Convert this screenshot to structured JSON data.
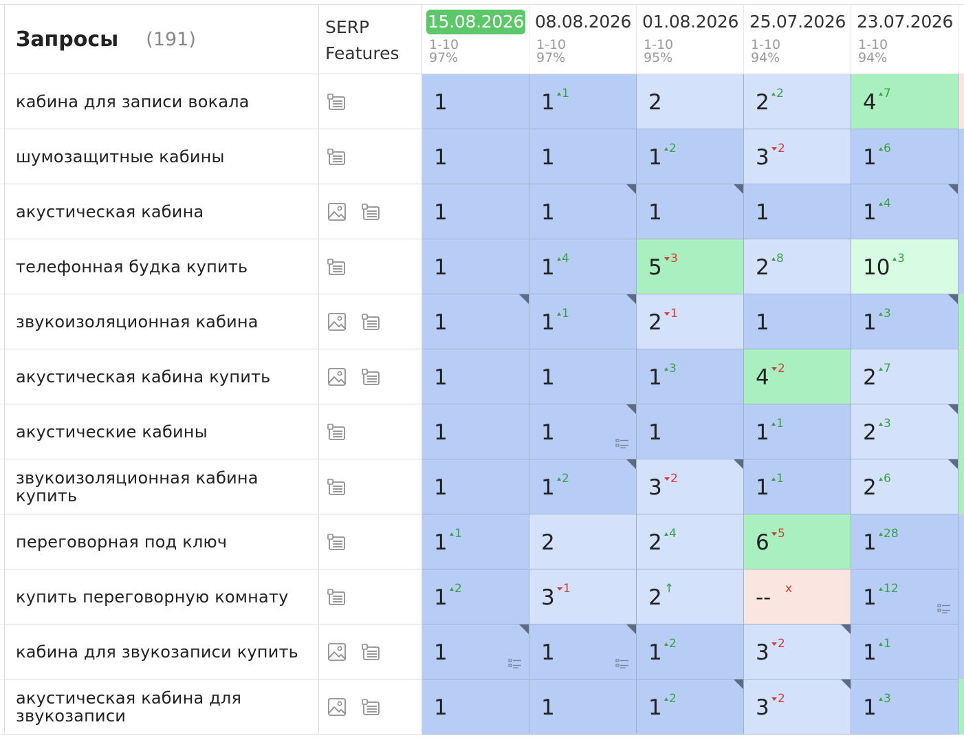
{
  "header": {
    "title": "Запросы",
    "count": "(191)",
    "serp_title_line1": "SERP",
    "serp_title_line2": "Features"
  },
  "dates": [
    {
      "date": "15.08.2026",
      "range": "1-10",
      "pct": "97%",
      "active": true
    },
    {
      "date": "08.08.2026",
      "range": "1-10",
      "pct": "97%",
      "active": false
    },
    {
      "date": "01.08.2026",
      "range": "1-10",
      "pct": "95%",
      "active": false
    },
    {
      "date": "25.07.2026",
      "range": "1-10",
      "pct": "94%",
      "active": false
    },
    {
      "date": "23.07.2026",
      "range": "1-10",
      "pct": "94%",
      "active": false
    }
  ],
  "colors": {
    "top1": "#b7cdf6",
    "top3": "#d3e1fb",
    "top5": "#a9efbf",
    "top10": "#d8fbe3",
    "missing": "#fbe5e0",
    "edge_green": "#a9efbf",
    "edge_pink": "#fbe5e0",
    "edge_blue": "#b7cdf6"
  },
  "rows": [
    {
      "query": "кабина для записи вокала",
      "serp": [
        "list"
      ],
      "edge": "edge_pink",
      "cells": [
        {
          "v": "1",
          "bg": "top1"
        },
        {
          "v": "1",
          "d": "1",
          "dir": "up",
          "bg": "top1"
        },
        {
          "v": "2",
          "bg": "top3"
        },
        {
          "v": "2",
          "d": "2",
          "dir": "up",
          "bg": "top3"
        },
        {
          "v": "4",
          "d": "7",
          "dir": "up",
          "bg": "top5"
        }
      ]
    },
    {
      "query": "шумозащитные кабины",
      "serp": [
        "list"
      ],
      "edge": "edge_blue",
      "cells": [
        {
          "v": "1",
          "bg": "top1"
        },
        {
          "v": "1",
          "bg": "top1"
        },
        {
          "v": "1",
          "d": "2",
          "dir": "up",
          "bg": "top1"
        },
        {
          "v": "3",
          "d": "2",
          "dir": "down",
          "bg": "top3"
        },
        {
          "v": "1",
          "d": "6",
          "dir": "up",
          "bg": "top1"
        }
      ]
    },
    {
      "query": "акустическая кабина",
      "serp": [
        "image",
        "list"
      ],
      "edge": "edge_blue",
      "cells": [
        {
          "v": "1",
          "bg": "top1"
        },
        {
          "v": "1",
          "bg": "top1",
          "corner": true
        },
        {
          "v": "1",
          "bg": "top1",
          "corner": true
        },
        {
          "v": "1",
          "bg": "top1"
        },
        {
          "v": "1",
          "d": "4",
          "dir": "up",
          "bg": "top1",
          "corner": true
        }
      ]
    },
    {
      "query": "телефонная будка купить",
      "serp": [
        "list"
      ],
      "edge": "edge_blue",
      "cells": [
        {
          "v": "1",
          "bg": "top1"
        },
        {
          "v": "1",
          "d": "4",
          "dir": "up",
          "bg": "top1"
        },
        {
          "v": "5",
          "d": "3",
          "dir": "down",
          "bg": "top5"
        },
        {
          "v": "2",
          "d": "8",
          "dir": "up",
          "bg": "top3"
        },
        {
          "v": "10",
          "d": "3",
          "dir": "up",
          "bg": "top10"
        }
      ]
    },
    {
      "query": "звукоизоляционная кабина",
      "serp": [
        "image",
        "list"
      ],
      "edge": "edge_green",
      "cells": [
        {
          "v": "1",
          "bg": "top1",
          "corner": true
        },
        {
          "v": "1",
          "d": "1",
          "dir": "up",
          "bg": "top1",
          "corner": true
        },
        {
          "v": "2",
          "d": "1",
          "dir": "down",
          "bg": "top3"
        },
        {
          "v": "1",
          "bg": "top1"
        },
        {
          "v": "1",
          "d": "3",
          "dir": "up",
          "bg": "top1",
          "corner": true
        }
      ]
    },
    {
      "query": "акустическая кабина купить",
      "serp": [
        "image",
        "list"
      ],
      "edge": "edge_green",
      "cells": [
        {
          "v": "1",
          "bg": "top1"
        },
        {
          "v": "1",
          "bg": "top1"
        },
        {
          "v": "1",
          "d": "3",
          "dir": "up",
          "bg": "top1"
        },
        {
          "v": "4",
          "d": "2",
          "dir": "down",
          "bg": "top5"
        },
        {
          "v": "2",
          "d": "7",
          "dir": "up",
          "bg": "top3"
        }
      ]
    },
    {
      "query": "акустические кабины",
      "serp": [
        "list"
      ],
      "edge": "edge_green",
      "cells": [
        {
          "v": "1",
          "bg": "top1"
        },
        {
          "v": "1",
          "bg": "top1",
          "corner": true,
          "listico": true
        },
        {
          "v": "1",
          "bg": "top1"
        },
        {
          "v": "1",
          "d": "1",
          "dir": "up",
          "bg": "top1"
        },
        {
          "v": "2",
          "d": "3",
          "dir": "up",
          "bg": "top3",
          "corner": true
        }
      ]
    },
    {
      "query": "звукоизоляционная кабина купить",
      "serp": [
        "list"
      ],
      "edge": "edge_green",
      "cells": [
        {
          "v": "1",
          "bg": "top1"
        },
        {
          "v": "1",
          "d": "2",
          "dir": "up",
          "bg": "top1",
          "corner": true
        },
        {
          "v": "3",
          "d": "2",
          "dir": "down",
          "bg": "top3",
          "corner": true
        },
        {
          "v": "1",
          "d": "1",
          "dir": "up",
          "bg": "top1"
        },
        {
          "v": "2",
          "d": "6",
          "dir": "up",
          "bg": "top3",
          "corner": true
        }
      ]
    },
    {
      "query": "переговорная под ключ",
      "serp": [
        "list"
      ],
      "edge": "edge_blue",
      "cells": [
        {
          "v": "1",
          "d": "1",
          "dir": "up",
          "bg": "top1"
        },
        {
          "v": "2",
          "bg": "top3"
        },
        {
          "v": "2",
          "d": "4",
          "dir": "up",
          "bg": "top3"
        },
        {
          "v": "6",
          "d": "5",
          "dir": "down",
          "bg": "top5"
        },
        {
          "v": "1",
          "d": "28",
          "dir": "up",
          "bg": "top1"
        }
      ]
    },
    {
      "query": "купить переговорную комнату",
      "serp": [
        "list"
      ],
      "edge": "edge_blue",
      "cells": [
        {
          "v": "1",
          "d": "2",
          "dir": "up",
          "bg": "top1"
        },
        {
          "v": "3",
          "d": "1",
          "dir": "down",
          "bg": "top3"
        },
        {
          "v": "2",
          "d": "↑",
          "dir": "new",
          "bg": "top3"
        },
        {
          "v": "--",
          "d": "x",
          "dir": "lost",
          "bg": "missing"
        },
        {
          "v": "1",
          "d": "12",
          "dir": "up",
          "bg": "top1",
          "listico": true
        }
      ]
    },
    {
      "query": "кабина для звукозаписи купить",
      "serp": [
        "image",
        "list"
      ],
      "edge": "edge_blue",
      "cells": [
        {
          "v": "1",
          "bg": "top1",
          "corner": true,
          "listico": true
        },
        {
          "v": "1",
          "bg": "top1",
          "corner": true,
          "listico": true
        },
        {
          "v": "1",
          "d": "2",
          "dir": "up",
          "bg": "top1"
        },
        {
          "v": "3",
          "d": "2",
          "dir": "down",
          "bg": "top3",
          "corner": true
        },
        {
          "v": "1",
          "d": "1",
          "dir": "up",
          "bg": "top1"
        }
      ]
    },
    {
      "query": "акустическая кабина для звукозаписи",
      "serp": [
        "image",
        "list"
      ],
      "edge": "edge_green",
      "cells": [
        {
          "v": "1",
          "bg": "top1"
        },
        {
          "v": "1",
          "bg": "top1"
        },
        {
          "v": "1",
          "d": "2",
          "dir": "up",
          "bg": "top1",
          "corner": true
        },
        {
          "v": "3",
          "d": "2",
          "dir": "down",
          "bg": "top3",
          "corner": true
        },
        {
          "v": "1",
          "d": "3",
          "dir": "up",
          "bg": "top1"
        }
      ]
    }
  ]
}
